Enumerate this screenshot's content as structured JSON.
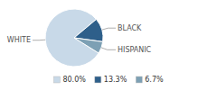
{
  "chart_data": {
    "type": "pie",
    "categories": [
      "WHITE",
      "BLACK",
      "HISPANIC"
    ],
    "values": [
      80.0,
      13.3,
      6.7
    ],
    "value_labels": [
      "80.0%",
      "13.3%",
      "6.7%"
    ],
    "colors": [
      "#c8d9e8",
      "#2e5f8a",
      "#7da0b4"
    ],
    "legend": "bottom"
  }
}
